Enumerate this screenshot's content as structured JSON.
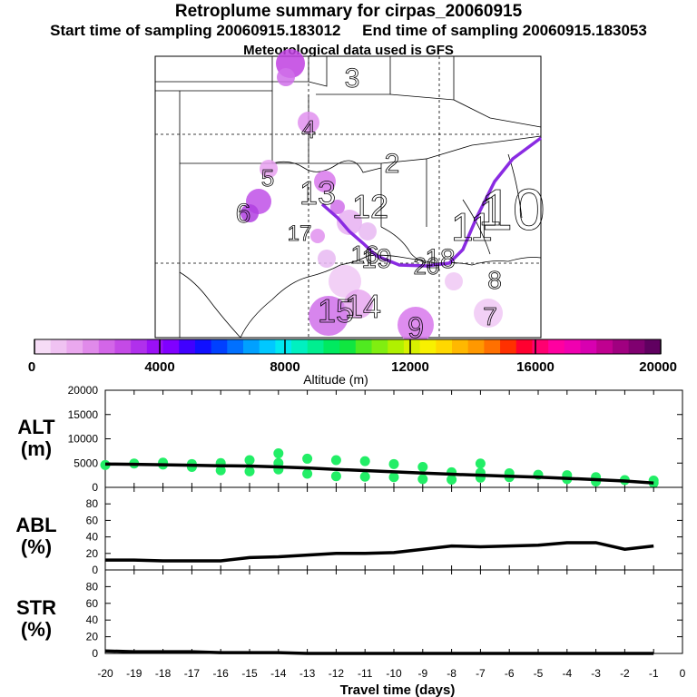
{
  "title": "Retroplume summary for cirpas_20060915",
  "start_time": "Start time of sampling 20060915.183012",
  "end_time": "End time of sampling 20060915.183053",
  "met_data": "Meteorological data used is GFS",
  "map": {
    "day_labels": [
      "1",
      "2",
      "3",
      "4",
      "5",
      "6",
      "7",
      "8",
      "9",
      "10",
      "11",
      "12",
      "13",
      "14",
      "15",
      "16",
      "17",
      "18",
      "19",
      "20"
    ],
    "plume_color": "#8a2be2"
  },
  "colorbar": {
    "label": "Altitude (m)",
    "ticks": [
      "0",
      "4000",
      "8000",
      "12000",
      "16000",
      "20000"
    ],
    "range": [
      0,
      20000
    ],
    "colors": [
      "#f6dcf6",
      "#f0c2f2",
      "#eaa8ee",
      "#e08aea",
      "#d366e8",
      "#c44ae6",
      "#b030ec",
      "#9a10f6",
      "#8000ff",
      "#4000ff",
      "#1010ff",
      "#0040ff",
      "#0070ff",
      "#00a0ff",
      "#00c8ff",
      "#00e8f0",
      "#00f0c0",
      "#00ee90",
      "#00ea60",
      "#10e640",
      "#50ea20",
      "#80ee10",
      "#b0f000",
      "#d8f000",
      "#f8f000",
      "#ffd800",
      "#ffb800",
      "#ff9800",
      "#ff7000",
      "#ff3000",
      "#ff0030",
      "#ff0070",
      "#ff00a0",
      "#f000b0",
      "#d800b0",
      "#c00090",
      "#a00080",
      "#800070",
      "#600060"
    ]
  },
  "chart_data": [
    {
      "type": "line",
      "panel": "ALT (m)",
      "title_lines": [
        "ALT",
        "(m)"
      ],
      "ylim": [
        0,
        20000
      ],
      "yticks": [
        0,
        5000,
        10000,
        15000,
        20000
      ],
      "x": [
        -20,
        -19,
        -18,
        -17,
        -16,
        -15,
        -14,
        -13,
        -12,
        -11,
        -10,
        -9,
        -8,
        -7,
        -6,
        -5,
        -4,
        -3,
        -2,
        -1
      ],
      "series": [
        {
          "name": "mean altitude",
          "values": [
            4800,
            4750,
            4650,
            4550,
            4450,
            4400,
            4200,
            4000,
            3700,
            3450,
            3200,
            2950,
            2700,
            2500,
            2300,
            2100,
            1850,
            1600,
            1300,
            900
          ]
        }
      ],
      "scatter": [
        {
          "x": -20,
          "y": 4600
        },
        {
          "x": -19,
          "y": 4900
        },
        {
          "x": -18,
          "y": 4700
        },
        {
          "x": -18,
          "y": 5100
        },
        {
          "x": -17,
          "y": 4800
        },
        {
          "x": -17,
          "y": 4200
        },
        {
          "x": -16,
          "y": 3500
        },
        {
          "x": -16,
          "y": 5000
        },
        {
          "x": -15,
          "y": 5600
        },
        {
          "x": -15,
          "y": 3300
        },
        {
          "x": -14,
          "y": 7000
        },
        {
          "x": -14,
          "y": 5000
        },
        {
          "x": -14,
          "y": 3700
        },
        {
          "x": -13,
          "y": 5900
        },
        {
          "x": -13,
          "y": 2800
        },
        {
          "x": -12,
          "y": 5600
        },
        {
          "x": -12,
          "y": 2300
        },
        {
          "x": -11,
          "y": 5400
        },
        {
          "x": -11,
          "y": 2200
        },
        {
          "x": -10,
          "y": 4800
        },
        {
          "x": -10,
          "y": 2100
        },
        {
          "x": -9,
          "y": 4200
        },
        {
          "x": -9,
          "y": 1700
        },
        {
          "x": -8,
          "y": 3100
        },
        {
          "x": -8,
          "y": 1600
        },
        {
          "x": -7,
          "y": 4900
        },
        {
          "x": -7,
          "y": 3000
        },
        {
          "x": -7,
          "y": 2000
        },
        {
          "x": -6,
          "y": 2900
        },
        {
          "x": -6,
          "y": 2100
        },
        {
          "x": -5,
          "y": 2600
        },
        {
          "x": -4,
          "y": 2500
        },
        {
          "x": -4,
          "y": 1700
        },
        {
          "x": -3,
          "y": 2100
        },
        {
          "x": -3,
          "y": 1200
        },
        {
          "x": -2,
          "y": 1500
        },
        {
          "x": -1,
          "y": 1400
        },
        {
          "x": -1,
          "y": 900
        }
      ],
      "scatter_color": "#22ee66"
    },
    {
      "type": "line",
      "panel": "ABL (%)",
      "title_lines": [
        "ABL",
        "(%)"
      ],
      "ylim": [
        0,
        100
      ],
      "yticks": [
        0,
        20,
        40,
        60,
        80
      ],
      "x": [
        -20,
        -19,
        -18,
        -17,
        -16,
        -15,
        -14,
        -13,
        -12,
        -11,
        -10,
        -9,
        -8,
        -7,
        -6,
        -5,
        -4,
        -3,
        -2,
        -1
      ],
      "series": [
        {
          "name": "ABL fraction",
          "values": [
            12,
            12,
            11,
            11,
            11,
            15,
            16,
            18,
            20,
            20,
            21,
            25,
            29,
            28,
            29,
            30,
            33,
            33,
            25,
            29
          ]
        }
      ]
    },
    {
      "type": "line",
      "panel": "STR (%)",
      "title_lines": [
        "STR",
        "(%)"
      ],
      "ylim": [
        0,
        100
      ],
      "yticks": [
        0,
        20,
        40,
        60,
        80
      ],
      "x": [
        -20,
        -19,
        -18,
        -17,
        -16,
        -15,
        -14,
        -13,
        -12,
        -11,
        -10,
        -9,
        -8,
        -7,
        -6,
        -5,
        -4,
        -3,
        -2,
        -1
      ],
      "series": [
        {
          "name": "stratospheric fraction",
          "values": [
            3,
            2,
            2,
            2,
            1,
            1,
            1,
            0,
            0,
            0,
            0,
            0,
            0,
            0,
            0,
            0,
            0,
            0,
            0,
            0
          ]
        }
      ]
    }
  ],
  "x_axis": {
    "label": "Travel time (days)",
    "ticks": [
      "-20",
      "-19",
      "-18",
      "-17",
      "-16",
      "-15",
      "-14",
      "-13",
      "-12",
      "-11",
      "-10",
      "-9",
      "-8",
      "-7",
      "-6",
      "-5",
      "-4",
      "-3",
      "-2",
      "-1",
      "0"
    ],
    "range": [
      -20,
      0
    ]
  }
}
